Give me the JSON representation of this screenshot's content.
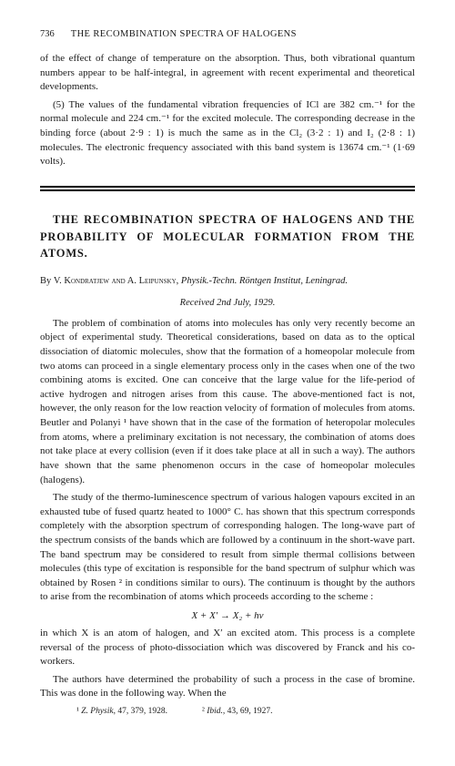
{
  "header": {
    "page_number": "736",
    "running_title": "THE RECOMBINATION SPECTRA OF HALOGENS"
  },
  "prelude": {
    "para1": "of the effect of change of temperature on the absorption. Thus, both vibrational quantum numbers appear to be half-integral, in agreement with recent experimental and theoretical developments.",
    "para2_lead": "(5) The values of the fundamental vibration frequencies of ICl are 382 cm.⁻¹ for the normal molecule and 224 cm.⁻¹ for the excited molecule. The corresponding decrease in the binding force (about 2·9 : 1) is much the same as in the Cl₂ (3·2 : 1) and I₂ (2·8 : 1) molecules. The electronic frequency associated with this band system is 13674 cm.⁻¹ (1·69 volts)."
  },
  "article": {
    "title": "THE RECOMBINATION SPECTRA OF HALOGENS AND THE PROBABILITY OF MOLECULAR FORMATION FROM THE ATOMS.",
    "byline_prefix": "By ",
    "authors": "V. Kondratjew and A. Leipunsky,",
    "affiliation": " Physik.-Techn. Röntgen Institut, Leningrad.",
    "received": "Received 2nd July, 1929.",
    "body": {
      "p1": "The problem of combination of atoms into molecules has only very recently become an object of experimental study. Theoretical considerations, based on data as to the optical dissociation of diatomic molecules, show that the formation of a homeopolar molecule from two atoms can proceed in a single elementary process only in the cases when one of the two combining atoms is excited. One can conceive that the large value for the life-period of active hydrogen and nitrogen arises from this cause. The above-mentioned fact is not, however, the only reason for the low reaction velocity of formation of molecules from atoms. Beutler and Polanyi ¹ have shown that in the case of the formation of heteropolar molecules from atoms, where a preliminary excitation is not necessary, the combination of atoms does not take place at every collision (even if it does take place at all in such a way). The authors have shown that the same phenomenon occurs in the case of homeopolar molecules (halogens).",
      "p2": "The study of the thermo-luminescence spectrum of various halogen vapours excited in an exhausted tube of fused quartz heated to 1000° C. has shown that this spectrum corresponds completely with the absorption spectrum of corresponding halogen. The long-wave part of the spectrum consists of the bands which are followed by a continuum in the short-wave part. The band spectrum may be considered to result from simple thermal collisions between molecules (this type of excitation is responsible for the band spectrum of sulphur which was obtained by Rosen ² in conditions similar to ours). The continuum is thought by the authors to arise from the recombination of atoms which proceeds according to the scheme :",
      "equation": "X + X′ → X₂ + hν",
      "p3": "in which X is an atom of halogen, and X′ an excited atom. This process is a complete reversal of the process of photo-dissociation which was discovered by Franck and his co-workers.",
      "p4": "The authors have determined the probability of such a process in the case of bromine. This was done in the following way. When the"
    }
  },
  "footnotes": {
    "f1_marker": "¹ ",
    "f1_journal": "Z. Physik, ",
    "f1_rest": "47, 379, 1928.",
    "f2_marker": "² ",
    "f2_journal": "Ibid., ",
    "f2_rest": "43, 69, 1927."
  }
}
